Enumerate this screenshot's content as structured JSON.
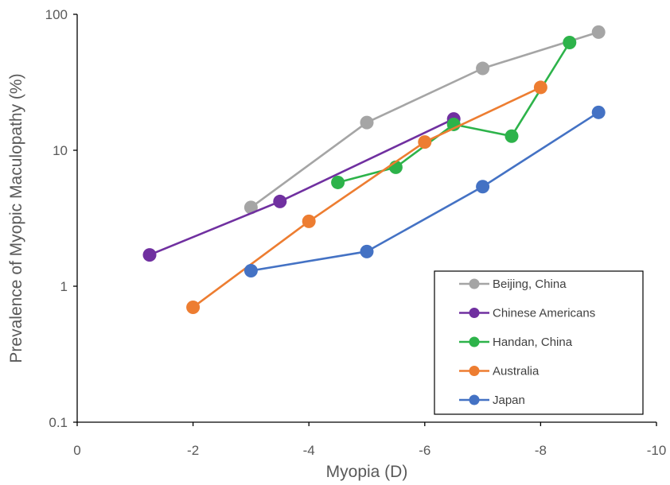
{
  "chart_data": {
    "type": "line",
    "title": "",
    "xlabel": "Myopia (D)",
    "ylabel": "Prevalence of Myopic Maculopathy (%)",
    "x_scale": "linear",
    "y_scale": "log",
    "xlim": [
      0,
      -10
    ],
    "ylim": [
      0.1,
      100
    ],
    "x_ticks": [
      0,
      -2,
      -4,
      -6,
      -8,
      -10
    ],
    "y_ticks": [
      0.1,
      1,
      10,
      100
    ],
    "x_tick_labels": [
      "0",
      "-2",
      "-4",
      "-6",
      "-8",
      "-10"
    ],
    "y_tick_labels": [
      "0.1",
      "1",
      "10",
      "100"
    ],
    "grid": false,
    "legend_position": "bottom-right",
    "series": [
      {
        "name": "Beijing, China",
        "color": "#a5a5a5",
        "x": [
          -3,
          -5,
          -7,
          -9
        ],
        "y": [
          3.8,
          16,
          40,
          74
        ]
      },
      {
        "name": "Chinese Americans",
        "color": "#7030a0",
        "x": [
          -1.25,
          -3.5,
          -6.5
        ],
        "y": [
          1.7,
          4.2,
          17
        ]
      },
      {
        "name": "Handan, China",
        "color": "#2db34a",
        "x": [
          -4.5,
          -5.5,
          -6.5,
          -7.5,
          -8.5
        ],
        "y": [
          5.8,
          7.5,
          15.5,
          12.7,
          62
        ]
      },
      {
        "name": "Australia",
        "color": "#ed7d31",
        "x": [
          -2,
          -4,
          -6,
          -8
        ],
        "y": [
          0.7,
          3.0,
          11.5,
          29
        ]
      },
      {
        "name": "Japan",
        "color": "#4472c4",
        "x": [
          -3,
          -5,
          -7,
          -9
        ],
        "y": [
          1.3,
          1.8,
          5.4,
          19
        ]
      }
    ]
  }
}
